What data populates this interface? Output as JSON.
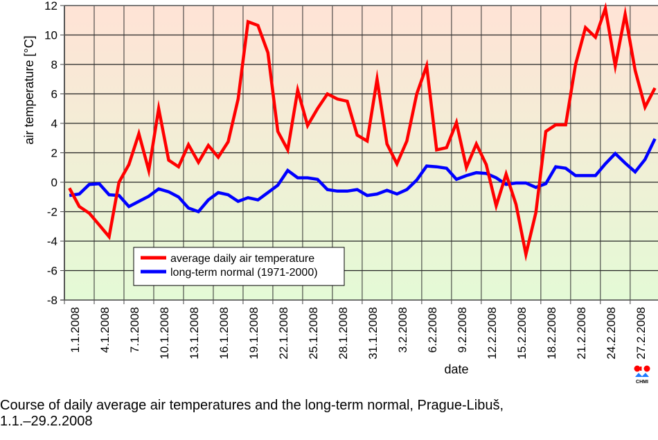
{
  "chart_data": {
    "type": "line",
    "title": "",
    "xlabel": "date",
    "ylabel": "air temperature [°C]",
    "ylim": [
      -8,
      12
    ],
    "yticks": [
      -8,
      -6,
      -4,
      -2,
      0,
      2,
      4,
      6,
      8,
      10,
      12
    ],
    "ytick_labels": [
      "-8",
      "-6",
      "-4",
      "-2",
      "0",
      "2",
      "4",
      "6",
      "8",
      "10",
      "12"
    ],
    "xtick_labels": [
      "1.1.2008",
      "4.1.2008",
      "7.1.2008",
      "10.1.2008",
      "13.1.2008",
      "16.1.2008",
      "19.1.2008",
      "22.1.2008",
      "25.1.2008",
      "28.1.2008",
      "31.1.2008",
      "3.2.2008",
      "6.2.2008",
      "9.2.2008",
      "12.2.2008",
      "15.2.2008",
      "18.2.2008",
      "21.2.2008",
      "24.2.2008",
      "27.2.2008"
    ],
    "grid": true,
    "legend_position": "lower-center-left",
    "x": [
      "1.1",
      "2.1",
      "3.1",
      "4.1",
      "5.1",
      "6.1",
      "7.1",
      "8.1",
      "9.1",
      "10.1",
      "11.1",
      "12.1",
      "13.1",
      "14.1",
      "15.1",
      "16.1",
      "17.1",
      "18.1",
      "19.1",
      "20.1",
      "21.1",
      "22.1",
      "23.1",
      "24.1",
      "25.1",
      "26.1",
      "27.1",
      "28.1",
      "29.1",
      "30.1",
      "31.1",
      "1.2",
      "2.2",
      "3.2",
      "4.2",
      "5.2",
      "6.2",
      "7.2",
      "8.2",
      "9.2",
      "10.2",
      "11.2",
      "12.2",
      "13.2",
      "14.2",
      "15.2",
      "16.2",
      "17.2",
      "18.2",
      "19.2",
      "20.2",
      "21.2",
      "22.2",
      "23.2",
      "24.2",
      "25.2",
      "26.2",
      "27.2",
      "28.2",
      "29.2"
    ],
    "series": [
      {
        "name": "average daily air temperature",
        "color": "#ff0000",
        "values": [
          -0.4,
          -1.65,
          -2.1,
          -2.9,
          -3.7,
          0.0,
          1.2,
          3.3,
          0.8,
          5.0,
          1.5,
          1.05,
          2.55,
          1.35,
          2.5,
          1.7,
          2.75,
          5.65,
          10.9,
          10.65,
          8.8,
          3.45,
          2.2,
          6.25,
          3.85,
          5.0,
          6.0,
          5.65,
          5.5,
          3.2,
          2.8,
          7.0,
          2.6,
          1.25,
          2.8,
          6.0,
          7.9,
          2.2,
          2.35,
          4.05,
          1.0,
          2.6,
          1.2,
          -1.6,
          0.55,
          -1.5,
          -4.9,
          -2.05,
          3.45,
          3.9,
          3.9,
          8.0,
          10.5,
          9.85,
          11.8,
          7.9,
          11.4,
          7.6,
          5.1,
          6.4
        ]
      },
      {
        "name": "long-term normal (1971-2000)",
        "color": "#0000ff",
        "values": [
          -0.9,
          -0.8,
          -0.15,
          -0.1,
          -0.85,
          -0.9,
          -1.65,
          -1.3,
          -0.95,
          -0.45,
          -0.65,
          -1.0,
          -1.75,
          -2.0,
          -1.2,
          -0.7,
          -0.85,
          -1.3,
          -1.05,
          -1.2,
          -0.7,
          -0.2,
          0.8,
          0.3,
          0.3,
          0.2,
          -0.5,
          -0.6,
          -0.6,
          -0.5,
          -0.9,
          -0.8,
          -0.55,
          -0.8,
          -0.5,
          0.15,
          1.1,
          1.05,
          0.95,
          0.2,
          0.45,
          0.65,
          0.6,
          0.3,
          -0.15,
          -0.05,
          -0.05,
          -0.35,
          -0.1,
          1.05,
          0.95,
          0.45,
          0.45,
          0.45,
          1.25,
          1.95,
          1.3,
          0.7,
          1.55,
          2.95
        ]
      }
    ],
    "background_gradient": {
      "top": "#ffe3d6",
      "bottom": "#e4fad6"
    }
  },
  "caption": {
    "line1": "Course of daily average air temperatures and the long-term normal, Prague-Libuš,",
    "line2": "1.1.–29.2.2008"
  },
  "logo": {
    "text": "CHMI"
  }
}
